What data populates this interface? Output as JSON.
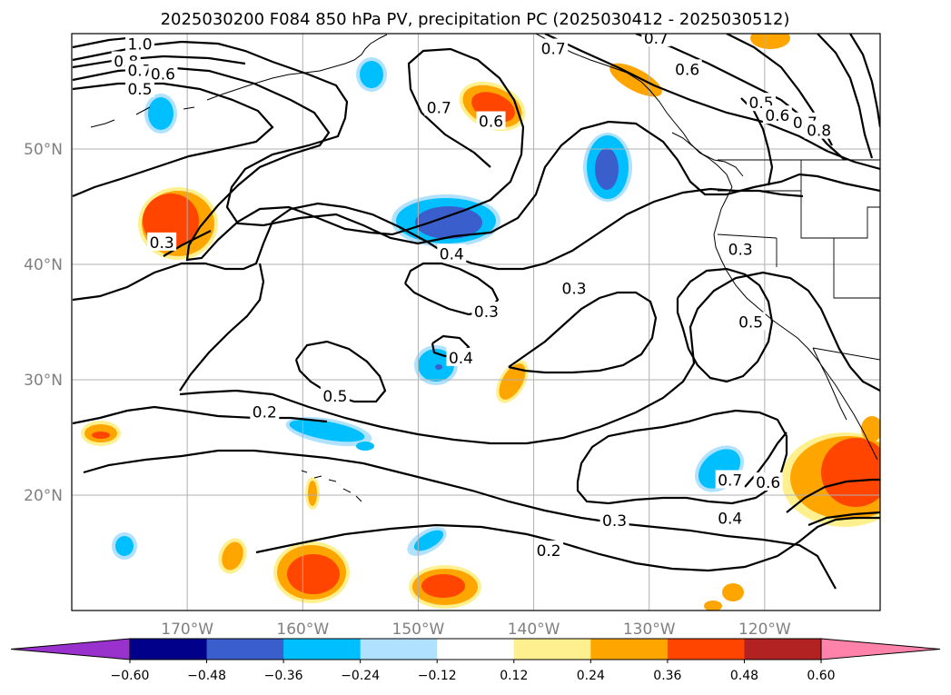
{
  "title": "2025030200 F084 850 hPa PV, precipitation PC (2025030412 - 2025030512)",
  "map": {
    "lon_range": [
      -180,
      -110
    ],
    "lat_range": [
      10,
      60
    ],
    "lat_labels": [
      {
        "lat": 50,
        "text": "50°N"
      },
      {
        "lat": 40,
        "text": "40°N"
      },
      {
        "lat": 30,
        "text": "30°N"
      },
      {
        "lat": 20,
        "text": "20°N"
      }
    ],
    "lon_labels": [
      {
        "lon": -170,
        "text": "170°W"
      },
      {
        "lon": -160,
        "text": "160°W"
      },
      {
        "lon": -150,
        "text": "150°W"
      },
      {
        "lon": -140,
        "text": "140°W"
      },
      {
        "lon": -130,
        "text": "130°W"
      },
      {
        "lon": -120,
        "text": "120°W"
      }
    ],
    "gridlines": true,
    "contour_labels": [
      {
        "lon": -174.1,
        "lat": 59.1,
        "text": "1.0"
      },
      {
        "lon": -175.3,
        "lat": 57.6,
        "text": "0.8"
      },
      {
        "lon": -174.1,
        "lat": 56.8,
        "text": "0.7"
      },
      {
        "lon": -172.1,
        "lat": 56.5,
        "text": "0.6"
      },
      {
        "lon": -174.1,
        "lat": 55.2,
        "text": "0.5"
      },
      {
        "lon": -148.2,
        "lat": 53.6,
        "text": "0.7"
      },
      {
        "lon": -143.7,
        "lat": 52.4,
        "text": "0.6"
      },
      {
        "lon": -138.3,
        "lat": 58.7,
        "text": "0.7"
      },
      {
        "lon": -129.4,
        "lat": 59.6,
        "text": "0.7"
      },
      {
        "lon": -126.7,
        "lat": 56.9,
        "text": "0.6"
      },
      {
        "lon": -120.3,
        "lat": 54.0,
        "text": "0.5"
      },
      {
        "lon": -118.9,
        "lat": 52.9,
        "text": "0.6"
      },
      {
        "lon": -116.5,
        "lat": 52.3,
        "text": "0.7"
      },
      {
        "lon": -115.3,
        "lat": 51.6,
        "text": "0.8"
      },
      {
        "lon": -122.1,
        "lat": 41.3,
        "text": "0.3"
      },
      {
        "lon": -172.2,
        "lat": 41.9,
        "text": "0.3"
      },
      {
        "lon": -147.1,
        "lat": 40.9,
        "text": "0.4"
      },
      {
        "lon": -144.1,
        "lat": 35.9,
        "text": "0.3"
      },
      {
        "lon": -136.5,
        "lat": 37.9,
        "text": "0.3"
      },
      {
        "lon": -146.3,
        "lat": 31.9,
        "text": "0.4"
      },
      {
        "lon": -157.2,
        "lat": 28.6,
        "text": "0.5"
      },
      {
        "lon": -121.2,
        "lat": 35.0,
        "text": "0.5"
      },
      {
        "lon": -163.3,
        "lat": 27.2,
        "text": "0.2"
      },
      {
        "lon": -123.0,
        "lat": 21.3,
        "text": "0.7"
      },
      {
        "lon": -119.7,
        "lat": 21.1,
        "text": "0.6"
      },
      {
        "lon": -123.0,
        "lat": 18.0,
        "text": "0.4"
      },
      {
        "lon": -133.0,
        "lat": 17.8,
        "text": "0.3"
      },
      {
        "lon": -138.7,
        "lat": 15.2,
        "text": "0.2"
      }
    ]
  },
  "colorbar": {
    "ticks": [
      "−0.60",
      "−0.48",
      "−0.36",
      "−0.24",
      "−0.12",
      "0.12",
      "0.24",
      "0.36",
      "0.48",
      "0.60"
    ],
    "colors": [
      "#9932cc",
      "#00008b",
      "#3a5fcd",
      "#00bfff",
      "#b0e2ff",
      "#ffffff",
      "#fff08f",
      "#ffa500",
      "#ff4500",
      "#b22222",
      "#ff82ab"
    ]
  }
}
